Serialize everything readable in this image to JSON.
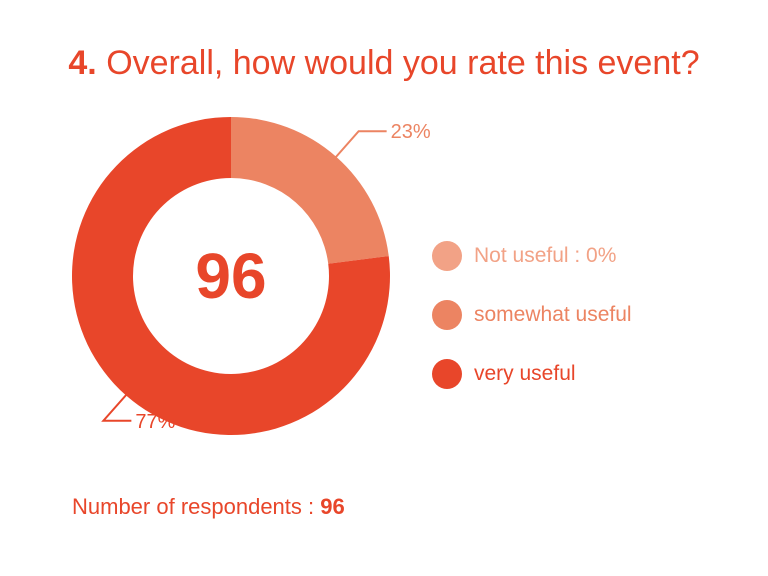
{
  "title": {
    "number": "4.",
    "text": "Overall, how would you rate this event?"
  },
  "chart_data": {
    "type": "pie",
    "center_label": "96",
    "slices": [
      {
        "label": "Not useful : 0%",
        "value": 0,
        "color": "#f2a286",
        "data_label": ""
      },
      {
        "label": "somewhat useful",
        "value": 23,
        "color": "#ec8462",
        "data_label": "23%"
      },
      {
        "label": "very useful",
        "value": 77,
        "color": "#e8462a",
        "data_label": "77%"
      }
    ]
  },
  "footer": {
    "label": "Number of respondents : ",
    "count": "96"
  }
}
